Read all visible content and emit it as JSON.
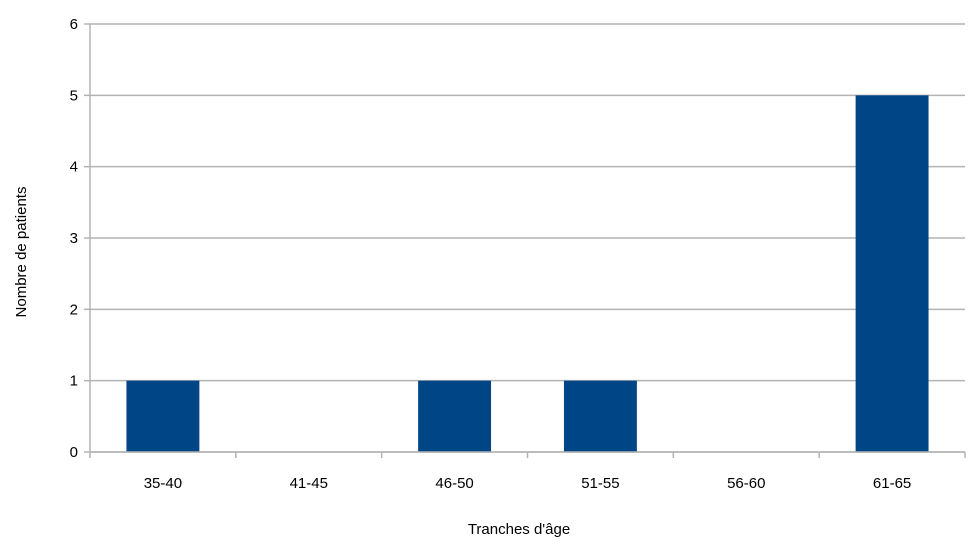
{
  "chart_data": {
    "type": "bar",
    "categories": [
      "35-40",
      "41-45",
      "46-50",
      "51-55",
      "56-60",
      "61-65"
    ],
    "values": [
      1,
      0,
      1,
      1,
      0,
      5
    ],
    "title": "",
    "xlabel": "Tranches d'âge",
    "ylabel": "Nombre de patients",
    "ylim": [
      0,
      6
    ],
    "yticks": [
      0,
      1,
      2,
      3,
      4,
      5,
      6
    ],
    "grid": true,
    "legend": "none",
    "colors": {
      "bar": "#004586",
      "grid": "#b3b3b3",
      "axis": "#b3b3b3"
    }
  }
}
